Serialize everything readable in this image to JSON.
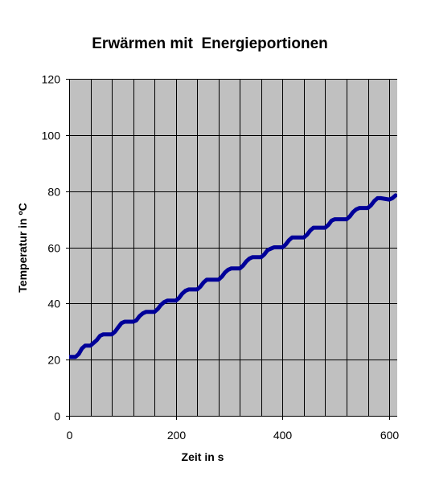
{
  "chart_data": {
    "type": "line",
    "title": "Erwärmen mit  Energieportionen",
    "xlabel": "Zeit in s",
    "ylabel": "Temperatur in ºC",
    "xlim": [
      0,
      615
    ],
    "ylim": [
      0,
      120
    ],
    "x_ticks": [
      "0",
      "200",
      "400",
      "600"
    ],
    "y_ticks": [
      "0",
      "20",
      "40",
      "60",
      "80",
      "100",
      "120"
    ],
    "x_gridlines": [
      0,
      40,
      80,
      120,
      160,
      200,
      240,
      280,
      320,
      360,
      400,
      440,
      480,
      520,
      560,
      600
    ],
    "y_gridlines": [
      0,
      20,
      40,
      60,
      80,
      100,
      120
    ],
    "grid": true,
    "legend": "none",
    "colors": {
      "plot_background": "#c0c0c0",
      "gridline": "#000000",
      "series": "#000099"
    },
    "series": [
      {
        "x": [
          0,
          12,
          18,
          24,
          30,
          40,
          46,
          52,
          58,
          64,
          80,
          86,
          92,
          98,
          104,
          120,
          126,
          132,
          138,
          144,
          160,
          166,
          172,
          178,
          184,
          200,
          206,
          212,
          218,
          224,
          240,
          246,
          252,
          258,
          264,
          280,
          286,
          292,
          298,
          304,
          320,
          326,
          332,
          338,
          344,
          360,
          366,
          372,
          378,
          384,
          400,
          406,
          412,
          418,
          424,
          440,
          446,
          452,
          458,
          464,
          480,
          486,
          492,
          498,
          504,
          520,
          526,
          532,
          538,
          544,
          560,
          566,
          572,
          578,
          584,
          600,
          606,
          612
        ],
        "y": [
          21,
          21,
          22,
          24,
          25,
          25,
          26,
          27,
          28.5,
          29,
          29,
          30,
          31.5,
          33,
          33.5,
          33.5,
          34,
          35.5,
          36.5,
          37,
          37,
          38,
          39.5,
          40.5,
          41,
          41,
          42,
          43.5,
          44.5,
          45,
          45,
          46,
          47.5,
          48.5,
          48.5,
          48.5,
          49.5,
          51,
          52,
          52.5,
          52.5,
          53.5,
          55,
          56,
          56.5,
          56.5,
          57.5,
          59,
          59.5,
          60,
          60,
          61,
          62.5,
          63.5,
          63.5,
          63.5,
          64.5,
          66,
          67,
          67,
          67,
          68,
          69.5,
          70,
          70,
          70,
          71,
          72.5,
          73.5,
          74,
          74,
          75,
          76.5,
          77.5,
          77.5,
          77,
          77.5,
          78.5
        ]
      }
    ]
  }
}
